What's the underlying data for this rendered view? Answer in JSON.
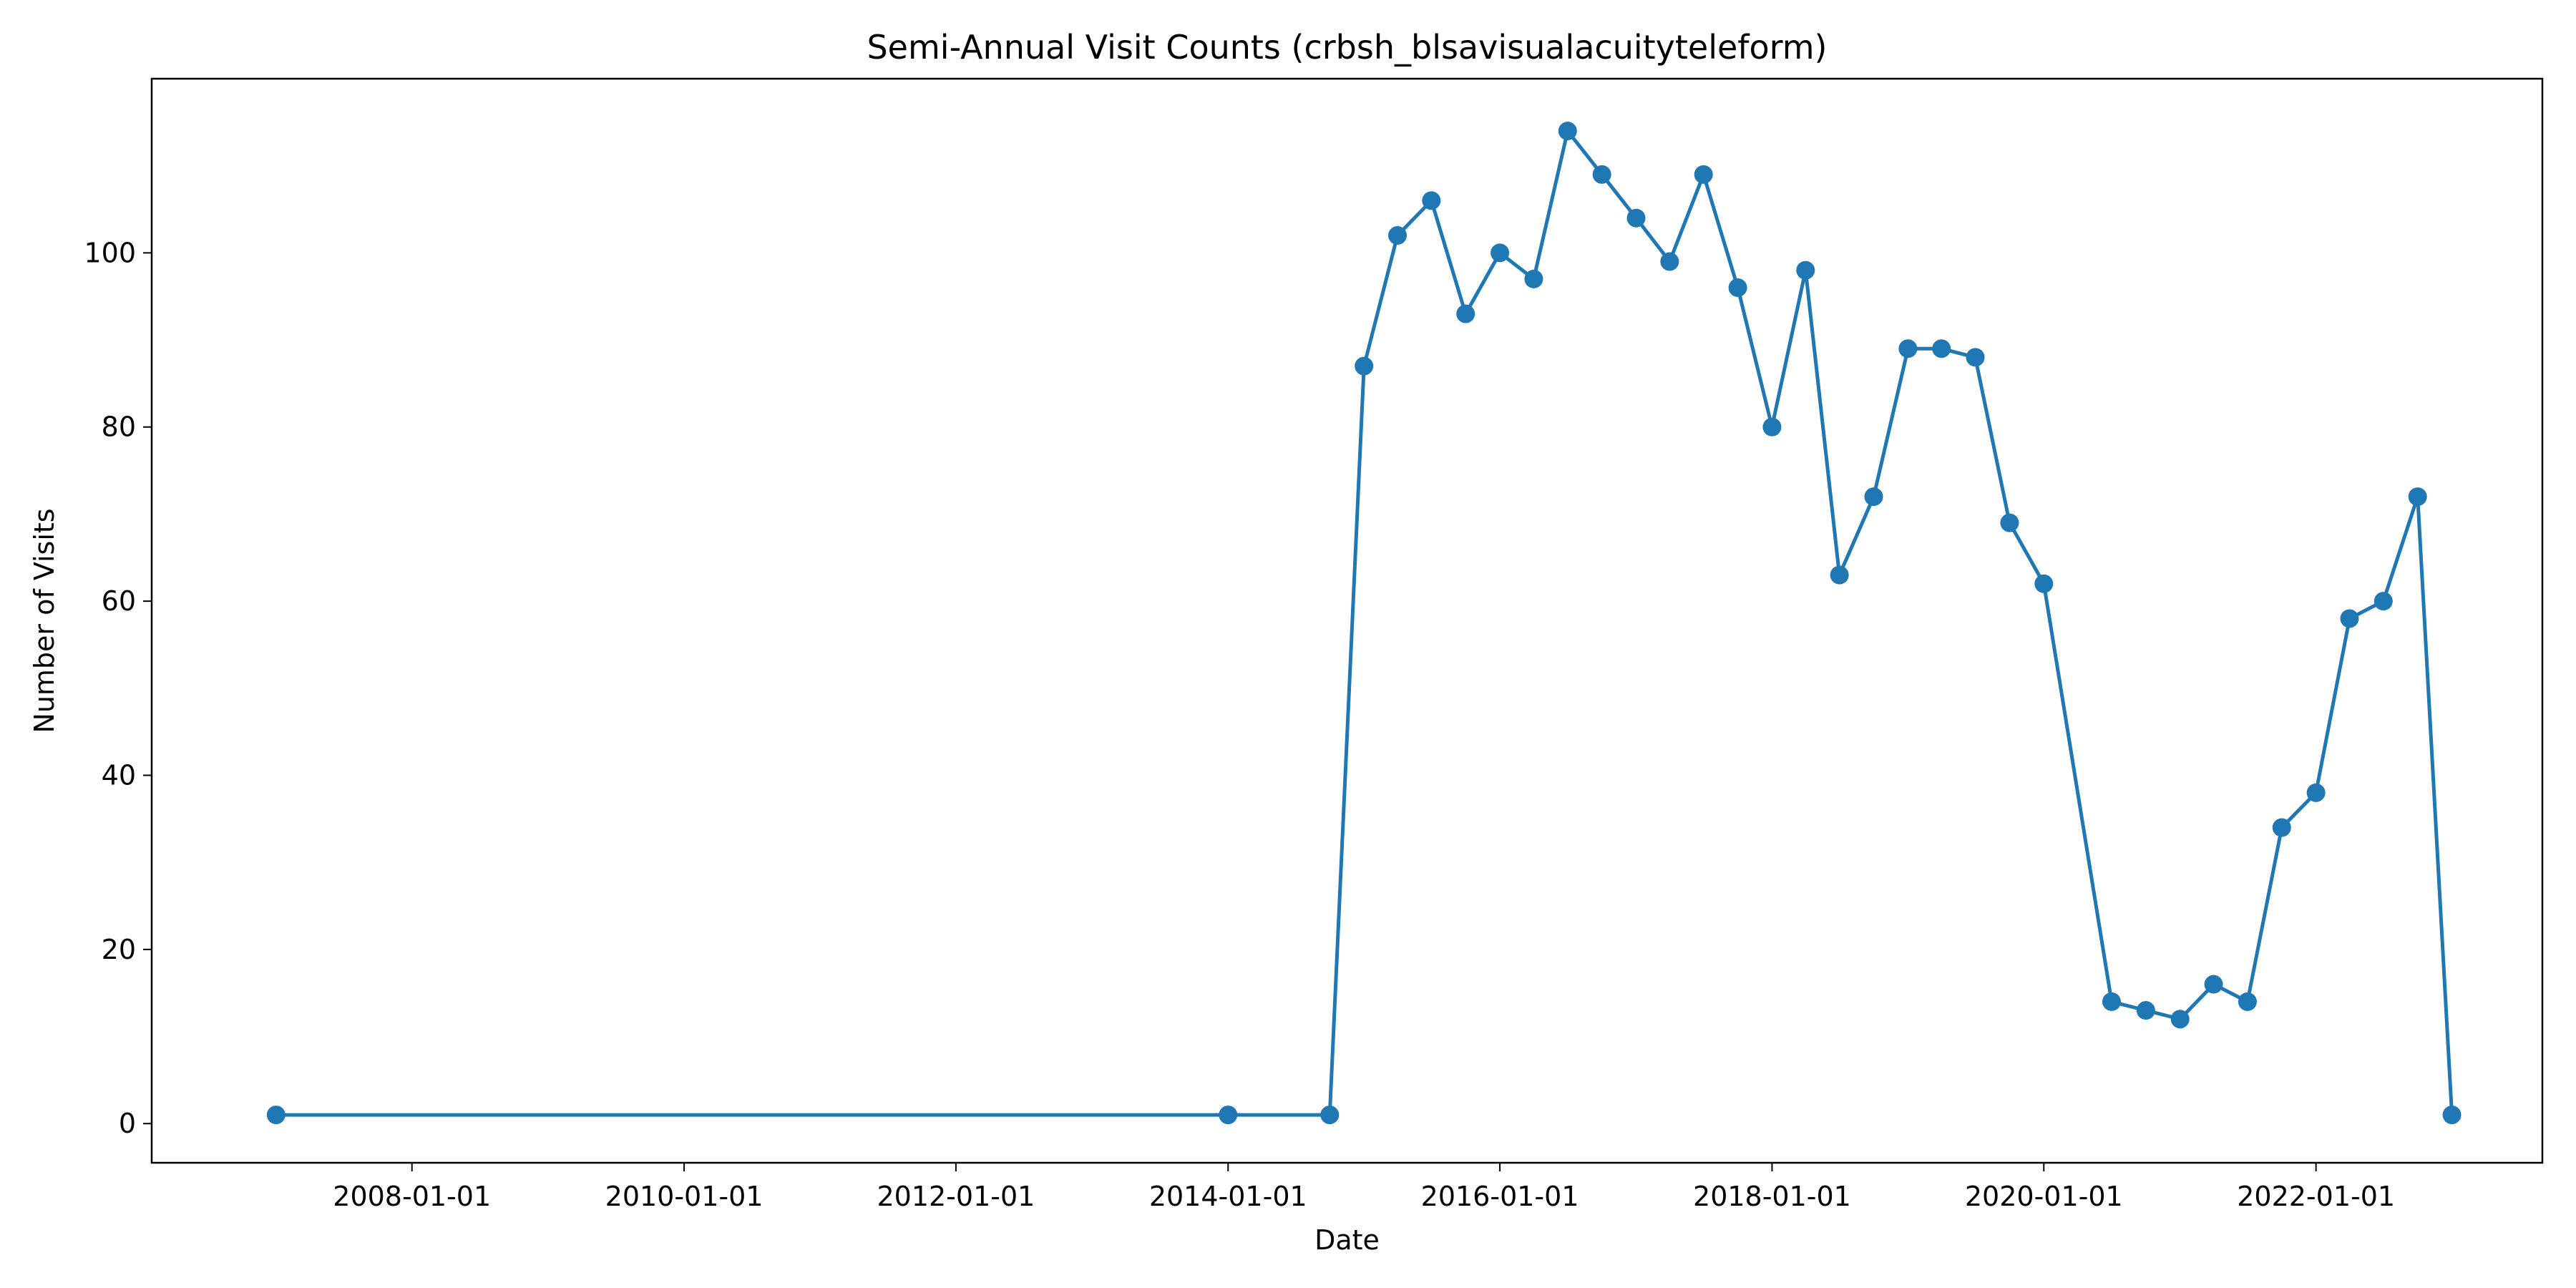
{
  "chart_data": {
    "type": "line",
    "title": "Semi-Annual Visit Counts (crbsh_blsavisualacuityteleform)",
    "xlabel": "Date",
    "ylabel": "Number of Visits",
    "x_type": "date",
    "xlim": [
      "2006-02-01",
      "2023-09-01"
    ],
    "ylim": [
      -4.5,
      120
    ],
    "x_ticks": [
      "2008-01-01",
      "2010-01-01",
      "2012-01-01",
      "2014-01-01",
      "2016-01-01",
      "2018-01-01",
      "2020-01-01",
      "2022-01-01"
    ],
    "y_ticks": [
      0,
      20,
      40,
      60,
      80,
      100
    ],
    "grid": false,
    "legend": null,
    "color": "#1f77b4",
    "marker": "circle",
    "series": [
      {
        "points": [
          {
            "x": "2007-01-01",
            "y": 1
          },
          {
            "x": "2014-01-01",
            "y": 1
          },
          {
            "x": "2014-10-01",
            "y": 1
          },
          {
            "x": "2015-01-01",
            "y": 87
          },
          {
            "x": "2015-04-01",
            "y": 102
          },
          {
            "x": "2015-07-01",
            "y": 106
          },
          {
            "x": "2015-10-01",
            "y": 93
          },
          {
            "x": "2016-01-01",
            "y": 100
          },
          {
            "x": "2016-04-01",
            "y": 97
          },
          {
            "x": "2016-07-01",
            "y": 114
          },
          {
            "x": "2016-10-01",
            "y": 109
          },
          {
            "x": "2017-01-01",
            "y": 104
          },
          {
            "x": "2017-04-01",
            "y": 99
          },
          {
            "x": "2017-07-01",
            "y": 109
          },
          {
            "x": "2017-10-01",
            "y": 96
          },
          {
            "x": "2018-01-01",
            "y": 80
          },
          {
            "x": "2018-04-01",
            "y": 98
          },
          {
            "x": "2018-07-01",
            "y": 63
          },
          {
            "x": "2018-10-01",
            "y": 72
          },
          {
            "x": "2019-01-01",
            "y": 89
          },
          {
            "x": "2019-04-01",
            "y": 89
          },
          {
            "x": "2019-07-01",
            "y": 88
          },
          {
            "x": "2019-10-01",
            "y": 69
          },
          {
            "x": "2020-01-01",
            "y": 62
          },
          {
            "x": "2020-07-01",
            "y": 14
          },
          {
            "x": "2020-10-01",
            "y": 13
          },
          {
            "x": "2021-01-01",
            "y": 12
          },
          {
            "x": "2021-04-01",
            "y": 16
          },
          {
            "x": "2021-07-01",
            "y": 14
          },
          {
            "x": "2021-10-01",
            "y": 34
          },
          {
            "x": "2022-01-01",
            "y": 38
          },
          {
            "x": "2022-04-01",
            "y": 58
          },
          {
            "x": "2022-07-01",
            "y": 60
          },
          {
            "x": "2022-10-01",
            "y": 72
          },
          {
            "x": "2023-01-01",
            "y": 1
          }
        ]
      }
    ]
  }
}
